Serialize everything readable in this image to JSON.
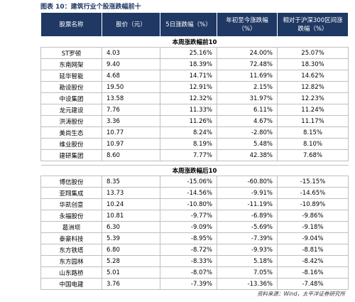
{
  "title": "图表 10：建筑行业个股涨跌幅前十",
  "table": {
    "header": [
      "股票名称",
      "股价（元）",
      "5日涨跌幅（%）",
      "年初至今涨跌幅（%）",
      "相对于沪深300区间涨跌幅（%）"
    ],
    "sections": [
      {
        "title": "本周涨跌幅前10",
        "rows": [
          [
            "ST罗顿",
            "4.03",
            "25.16%",
            "24.00%",
            "25.07%"
          ],
          [
            "东南网架",
            "9.40",
            "18.39%",
            "72.48%",
            "18.30%"
          ],
          [
            "延华智能",
            "4.68",
            "14.71%",
            "11.69%",
            "14.62%"
          ],
          [
            "勘设股份",
            "19.50",
            "12.91%",
            "2.15%",
            "12.82%"
          ],
          [
            "中设集团",
            "13.58",
            "12.32%",
            "31.97%",
            "12.23%"
          ],
          [
            "龙元建设",
            "7.76",
            "11.33%",
            "6.11%",
            "11.24%"
          ],
          [
            "洪涛股份",
            "3.36",
            "11.26%",
            "4.67%",
            "11.17%"
          ],
          [
            "美尚生态",
            "10.77",
            "8.24%",
            "-2.80%",
            "8.15%"
          ],
          [
            "维业股份",
            "10.97",
            "8.19%",
            "5.48%",
            "8.10%"
          ],
          [
            "建研集团",
            "8.60",
            "7.77%",
            "42.38%",
            "7.68%"
          ]
        ]
      },
      {
        "title": "本周涨跌幅后10",
        "rows": [
          [
            "博信股份",
            "8.35",
            "-15.06%",
            "-60.80%",
            "-15.15%"
          ],
          [
            "亚翔集成",
            "13.73",
            "-14.56%",
            "-9.91%",
            "-14.65%"
          ],
          [
            "华凯创意",
            "10.24",
            "-10.80%",
            "-11.19%",
            "-10.89%"
          ],
          [
            "永福股份",
            "10.81",
            "-9.77%",
            "-6.89%",
            "-9.86%"
          ],
          [
            "葛洲坝",
            "6.30",
            "-9.09%",
            "-5.69%",
            "-9.18%"
          ],
          [
            "泰豪科技",
            "5.39",
            "-8.95%",
            "-7.39%",
            "-9.04%"
          ],
          [
            "东方铁塔",
            "6.80",
            "-8.72%",
            "-9.93%",
            "-8.81%"
          ],
          [
            "东方园林",
            "5.28",
            "-8.33%",
            "5.18%",
            "-8.42%"
          ],
          [
            "山东路桥",
            "5.01",
            "-8.07%",
            "7.05%",
            "-8.16%"
          ],
          [
            "中国电建",
            "3.76",
            "-7.39%",
            "-13.36%",
            "-7.48%"
          ]
        ]
      }
    ]
  },
  "source": "资料来源：Wind，太平洋证券研究所"
}
